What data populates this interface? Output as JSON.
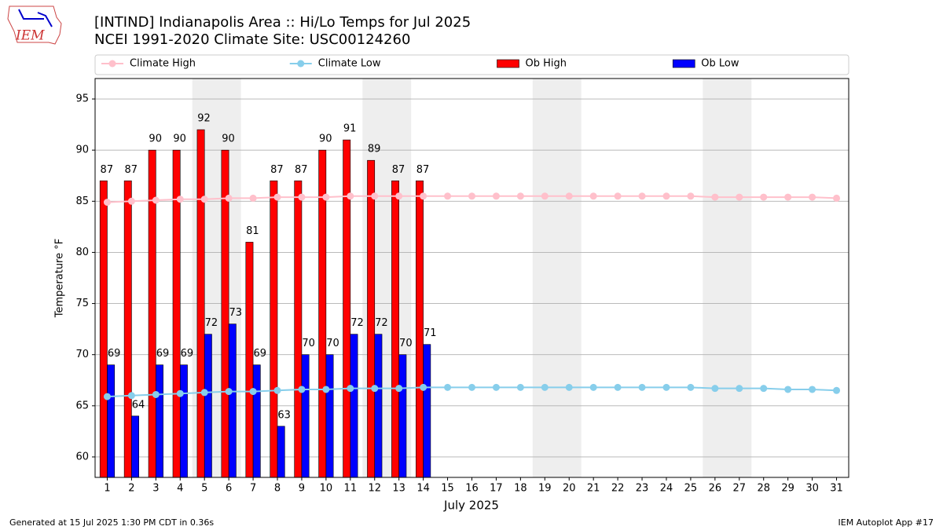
{
  "logo_text": "IEM",
  "footer": {
    "left": "Generated at 15 Jul 2025 1:30 PM CDT in 0.36s",
    "right": "IEM Autoplot App #17"
  },
  "chart_data": {
    "type": "bar",
    "title": "[INTIND] Indianapolis Area :: Hi/Lo Temps for Jul 2025",
    "subtitle": "NCEI 1991-2020 Climate Site: USC00124260",
    "x_label": "July 2025",
    "y_label": "Temperature °F",
    "categories": [
      "1",
      "2",
      "3",
      "4",
      "5",
      "6",
      "7",
      "8",
      "9",
      "10",
      "11",
      "12",
      "13",
      "14",
      "15",
      "16",
      "17",
      "18",
      "19",
      "20",
      "21",
      "22",
      "23",
      "24",
      "25",
      "26",
      "27",
      "28",
      "29",
      "30",
      "31"
    ],
    "shaded_ranges": [
      [
        4.5,
        6.5
      ],
      [
        11.5,
        13.5
      ],
      [
        18.5,
        20.5
      ],
      [
        25.5,
        27.5
      ]
    ],
    "shade_color": "#eeeeee",
    "xlim": [
      0.5,
      31.5
    ],
    "ylim": [
      58,
      97
    ],
    "yticks": [
      60,
      65,
      70,
      75,
      80,
      85,
      90,
      95
    ],
    "grid": true,
    "series": [
      {
        "name": "Climate High",
        "type": "line",
        "color": "#ffc0cb",
        "values": [
          84.9,
          85.0,
          85.1,
          85.2,
          85.2,
          85.3,
          85.3,
          85.4,
          85.4,
          85.4,
          85.5,
          85.5,
          85.5,
          85.5,
          85.5,
          85.5,
          85.5,
          85.5,
          85.5,
          85.5,
          85.5,
          85.5,
          85.5,
          85.5,
          85.5,
          85.4,
          85.4,
          85.4,
          85.4,
          85.4,
          85.3
        ]
      },
      {
        "name": "Climate Low",
        "type": "line",
        "color": "#87ceeb",
        "values": [
          65.9,
          66.0,
          66.1,
          66.2,
          66.3,
          66.4,
          66.4,
          66.5,
          66.6,
          66.6,
          66.7,
          66.7,
          66.7,
          66.8,
          66.8,
          66.8,
          66.8,
          66.8,
          66.8,
          66.8,
          66.8,
          66.8,
          66.8,
          66.8,
          66.8,
          66.7,
          66.7,
          66.7,
          66.6,
          66.6,
          66.5
        ]
      },
      {
        "name": "Ob High",
        "type": "bar",
        "color": "#ff0000",
        "values": [
          87,
          87,
          90,
          90,
          92,
          90,
          81,
          87,
          87,
          90,
          91,
          89,
          87,
          87,
          null,
          null,
          null,
          null,
          null,
          null,
          null,
          null,
          null,
          null,
          null,
          null,
          null,
          null,
          null,
          null,
          null
        ]
      },
      {
        "name": "Ob Low",
        "type": "bar",
        "color": "#0000ff",
        "values": [
          69,
          64,
          69,
          69,
          72,
          73,
          69,
          63,
          70,
          70,
          72,
          72,
          70,
          71,
          null,
          null,
          null,
          null,
          null,
          null,
          null,
          null,
          null,
          null,
          null,
          null,
          null,
          null,
          null,
          null,
          null
        ]
      }
    ]
  }
}
